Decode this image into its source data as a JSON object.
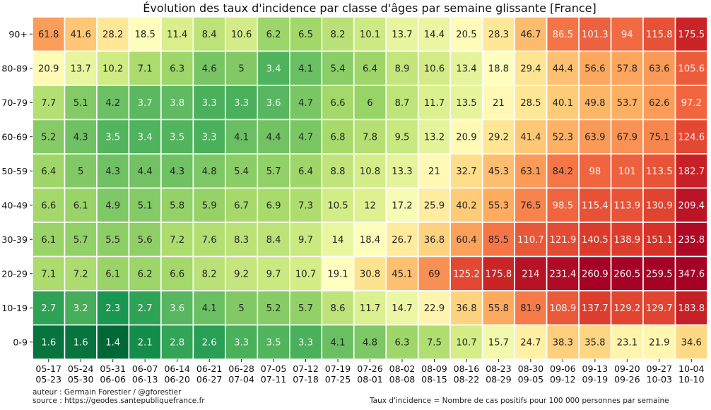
{
  "chart_data": {
    "type": "heatmap",
    "title": "Évolution des taux d'incidence par classe d'âges par semaine glissante [France]",
    "xlabel": "",
    "ylabel": "",
    "colormap": "RdYlGn_r",
    "rows": [
      "90+",
      "80-89",
      "70-79",
      "60-69",
      "50-59",
      "40-49",
      "30-39",
      "20-29",
      "10-19",
      "0-9"
    ],
    "columns": [
      [
        "05-17",
        "05-23"
      ],
      [
        "05-24",
        "05-30"
      ],
      [
        "05-31",
        "06-06"
      ],
      [
        "06-07",
        "06-13"
      ],
      [
        "06-14",
        "06-20"
      ],
      [
        "06-21",
        "06-27"
      ],
      [
        "06-28",
        "07-04"
      ],
      [
        "07-05",
        "07-11"
      ],
      [
        "07-12",
        "07-18"
      ],
      [
        "07-19",
        "07-25"
      ],
      [
        "07-26",
        "08-01"
      ],
      [
        "08-02",
        "08-08"
      ],
      [
        "08-09",
        "08-15"
      ],
      [
        "08-16",
        "08-22"
      ],
      [
        "08-23",
        "08-29"
      ],
      [
        "08-30",
        "09-05"
      ],
      [
        "09-06",
        "09-12"
      ],
      [
        "09-13",
        "09-19"
      ],
      [
        "09-20",
        "09-26"
      ],
      [
        "09-27",
        "10-03"
      ],
      [
        "10-04",
        "10-10"
      ]
    ],
    "values": [
      [
        61.8,
        41.6,
        28.2,
        18.5,
        11.4,
        8.4,
        10.6,
        6.2,
        6.5,
        8.2,
        10.1,
        13.7,
        14.4,
        20.5,
        28.3,
        46.7,
        86.5,
        101.3,
        94,
        115.8,
        175.5
      ],
      [
        20.9,
        13.7,
        10.2,
        7.1,
        6.3,
        4.6,
        5,
        3.4,
        4.1,
        5.4,
        6.4,
        8.9,
        10.6,
        13.4,
        18.8,
        29.4,
        44.4,
        56.6,
        57.8,
        63.6,
        105.6
      ],
      [
        7.7,
        5.1,
        4.2,
        3.7,
        3.8,
        3.3,
        3.3,
        3.6,
        4.7,
        6.6,
        6,
        8.7,
        11.7,
        13.5,
        21,
        28.5,
        40.1,
        49.8,
        53.7,
        62.6,
        97.2
      ],
      [
        5.2,
        4.3,
        3.5,
        3.4,
        3.5,
        3.3,
        4.1,
        4.4,
        4.7,
        6.8,
        7.8,
        9.5,
        13.2,
        20.9,
        29.2,
        41.4,
        52.3,
        63.9,
        67.9,
        75.1,
        124.6
      ],
      [
        6.4,
        5,
        4.3,
        4.4,
        4.3,
        4.8,
        5.4,
        5.7,
        6.4,
        8.8,
        10.8,
        13.3,
        21,
        32.7,
        45.3,
        63.1,
        84.2,
        98,
        101,
        113.5,
        182.7
      ],
      [
        6.6,
        6.1,
        4.9,
        5.1,
        5.8,
        5.9,
        6.7,
        6.9,
        7.3,
        10.5,
        12,
        17.2,
        25.9,
        40.2,
        55.3,
        76.5,
        98.5,
        115.4,
        113.9,
        130.9,
        209.4
      ],
      [
        6.1,
        5.7,
        5.5,
        5.6,
        7.2,
        7.6,
        8.3,
        8.4,
        9.7,
        14,
        18.4,
        26.7,
        36.8,
        60.4,
        85.5,
        110.7,
        121.9,
        140.5,
        138.9,
        151.1,
        235.8
      ],
      [
        7.1,
        7.2,
        6.1,
        6.2,
        6.6,
        8.2,
        9.2,
        9.7,
        10.7,
        19.1,
        30.8,
        45.1,
        69,
        125.2,
        175.8,
        214,
        231.4,
        260.9,
        260.5,
        259.5,
        347.6
      ],
      [
        2.7,
        3.2,
        2.3,
        2.7,
        3.6,
        4.1,
        5,
        5.2,
        5.7,
        8.6,
        11.7,
        14.7,
        22.9,
        36.8,
        55.8,
        81.9,
        108.9,
        137.7,
        129.2,
        129.7,
        183.8
      ],
      [
        1.6,
        1.6,
        1.4,
        2.1,
        2.8,
        2.6,
        3.3,
        3.5,
        3.3,
        4.1,
        4.8,
        6.3,
        7.5,
        10.7,
        15.7,
        24.7,
        38.3,
        35.8,
        23.1,
        21.9,
        34.6
      ]
    ],
    "color_scale": "log",
    "color_range": [
      1.4,
      260
    ],
    "grid_lines": "white",
    "legend": "none"
  },
  "footer": {
    "author": "auteur : Germain Forestier / @gforestier",
    "source": "source : https://geodes.santepubliquefrance.fr",
    "note": "Taux d'incidence = Nombre de cas positifs pour 100 000 personnes par semaine"
  }
}
